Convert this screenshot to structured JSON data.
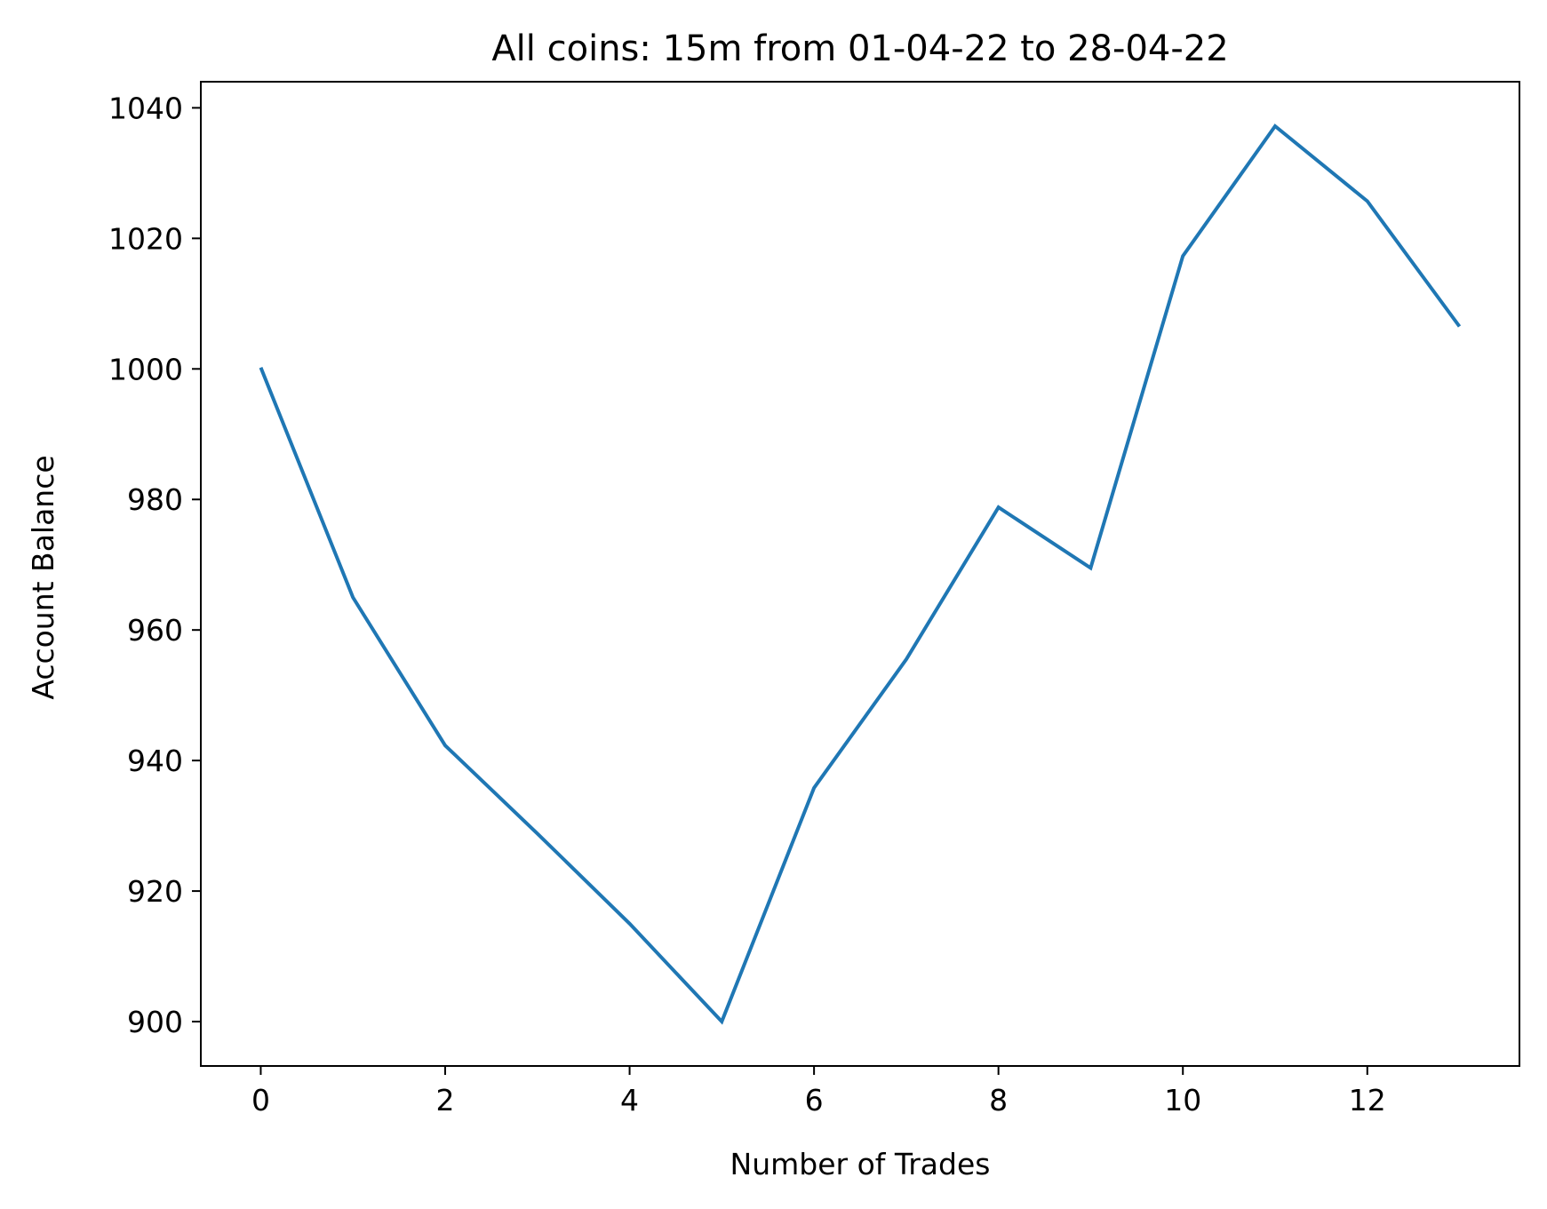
{
  "chart_data": {
    "type": "line",
    "title": "All coins: 15m from 01-04-22 to 28-04-22",
    "xlabel": "Number of Trades",
    "ylabel": "Account Balance",
    "xlim": [
      -0.65,
      13.65
    ],
    "ylim": [
      893.2,
      1044.0
    ],
    "x_ticks": [
      0,
      2,
      4,
      6,
      8,
      10,
      12
    ],
    "y_ticks": [
      900,
      920,
      940,
      960,
      980,
      1000,
      1020,
      1040
    ],
    "grid": false,
    "series": [
      {
        "color": "#1f77b4",
        "x": [
          0,
          1,
          2,
          3,
          4,
          5,
          6,
          7,
          8,
          9,
          10,
          11,
          12,
          13
        ],
        "y": [
          1000.2,
          965.0,
          942.3,
          928.8,
          915.0,
          900.0,
          935.8,
          955.5,
          978.8,
          969.5,
          1017.3,
          1037.2,
          1025.7,
          1006.5
        ]
      }
    ]
  }
}
